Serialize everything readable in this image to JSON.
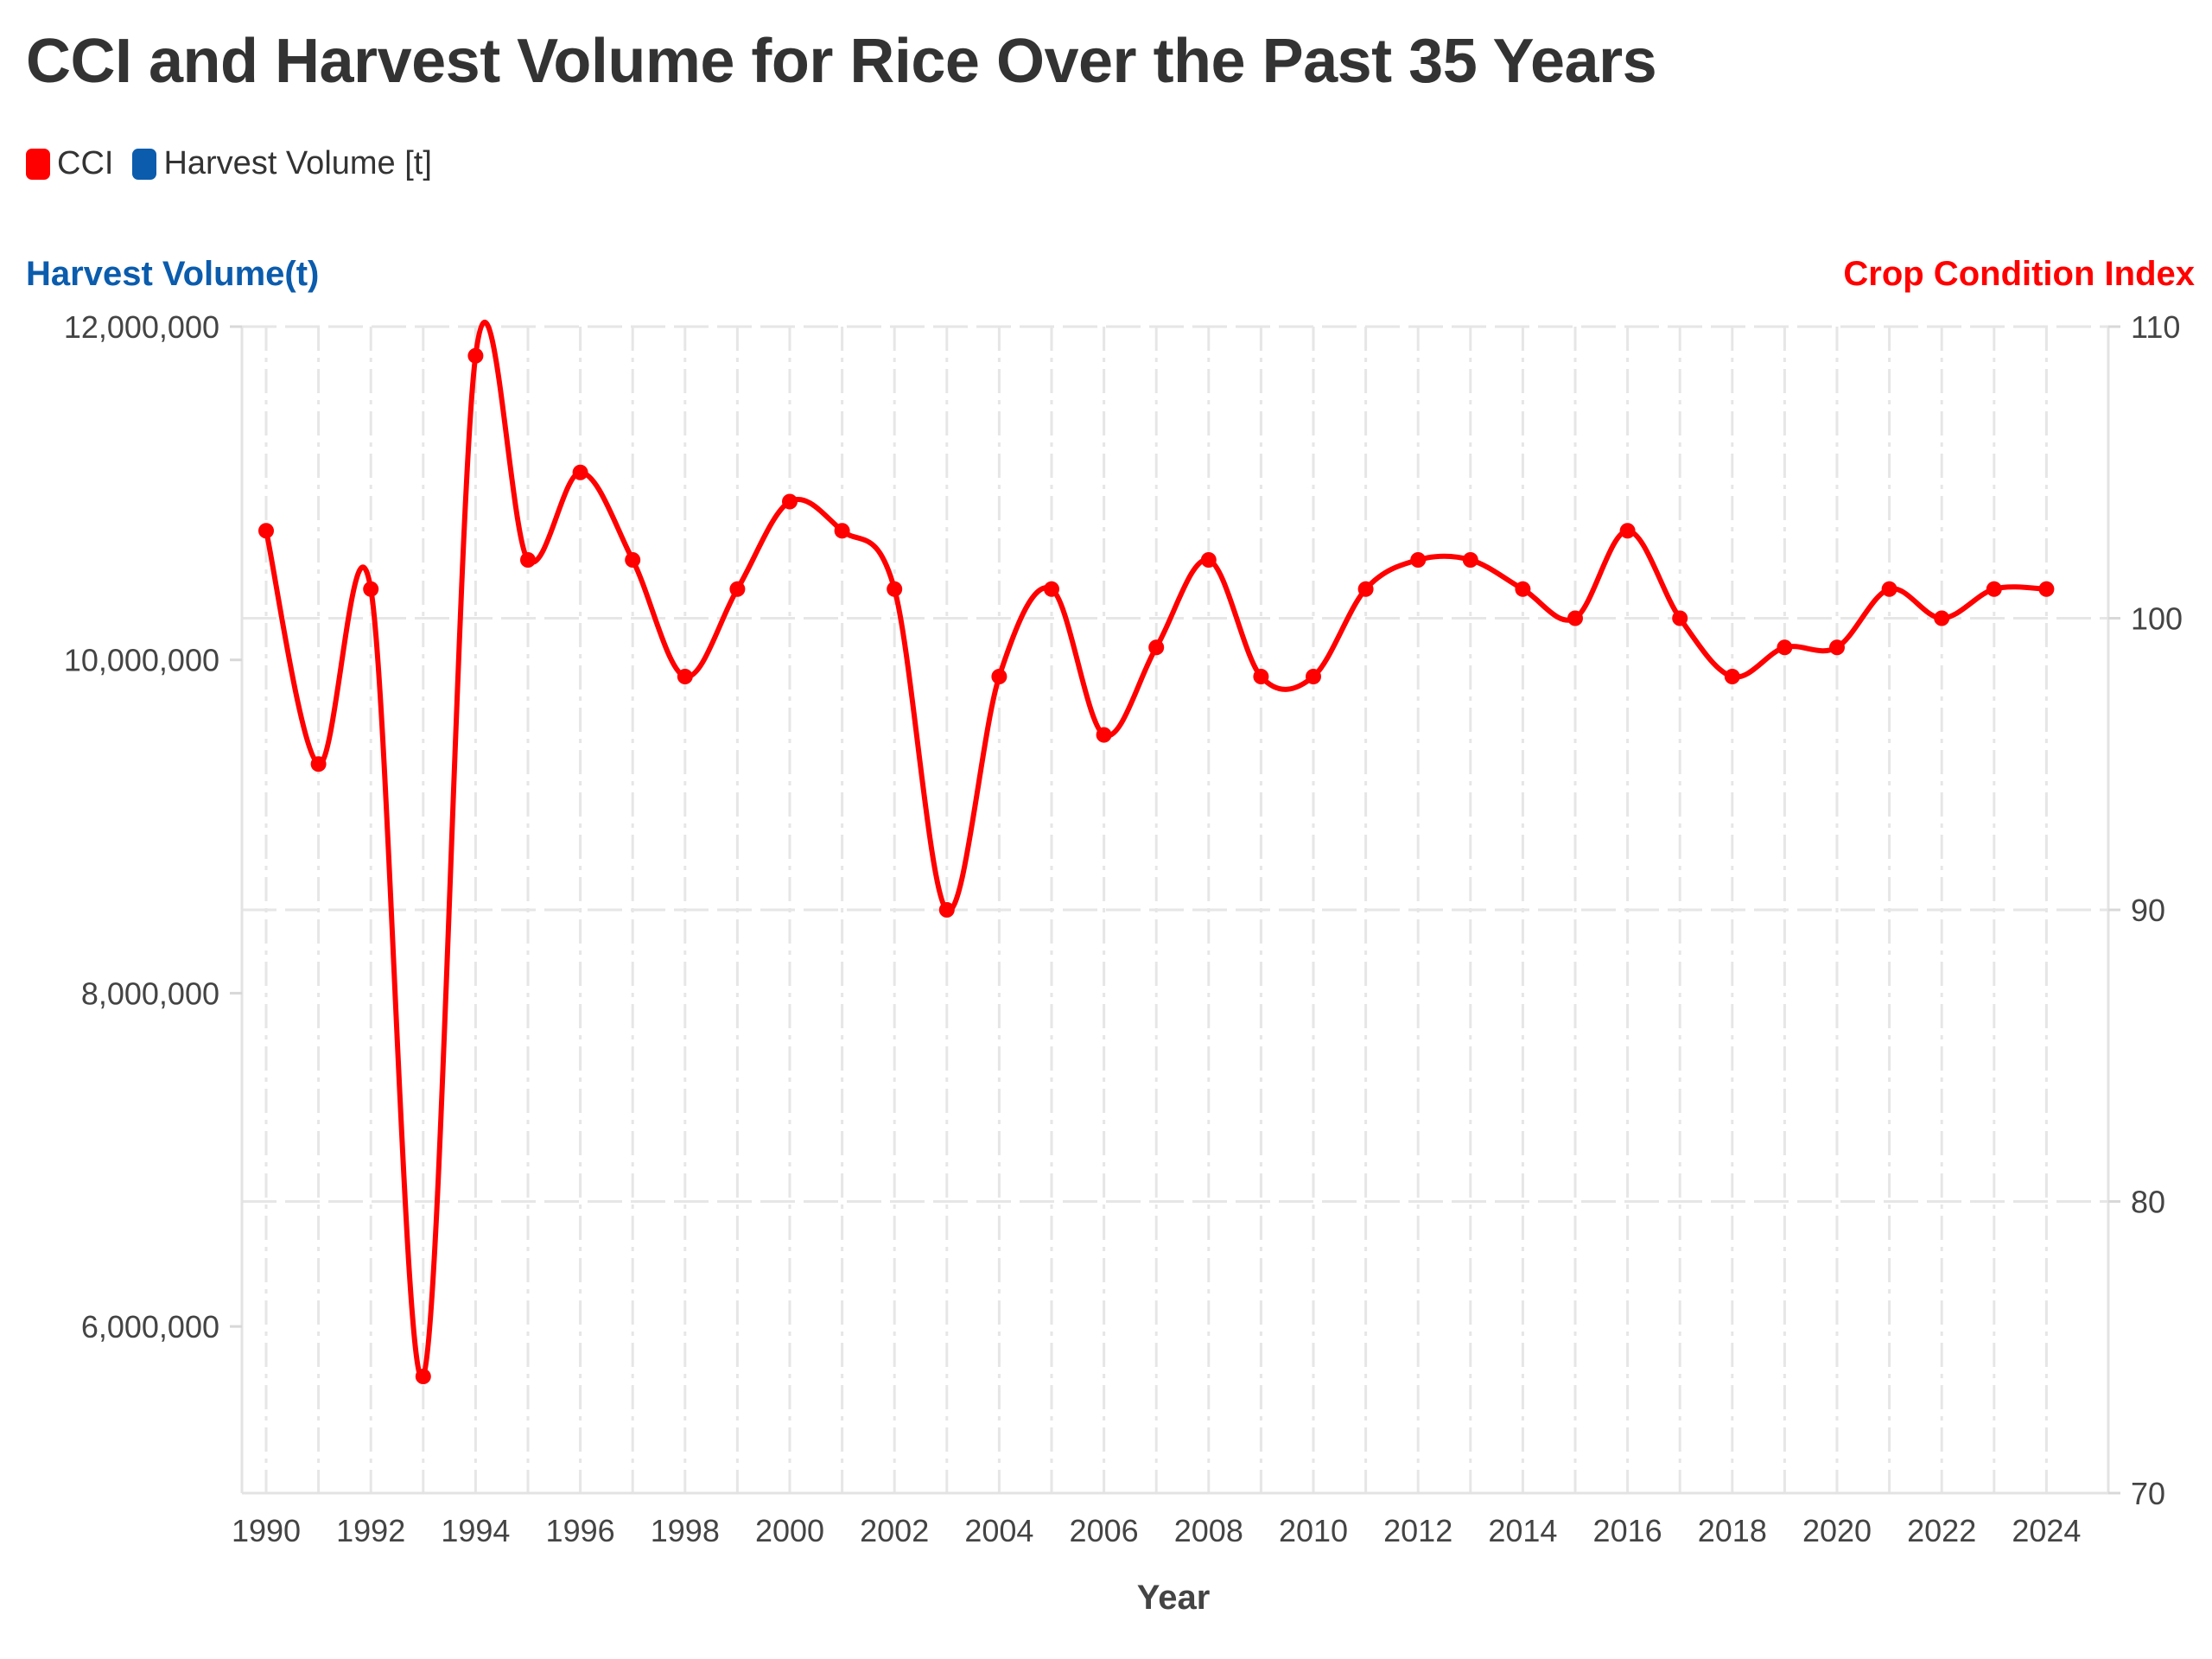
{
  "chart_data": {
    "type": "line",
    "title": "CCI and Harvest Volume for Rice Over the Past 35 Years",
    "legend": {
      "placement": "top-left",
      "entries": [
        {
          "label": "CCI",
          "color": "#ff0000"
        },
        {
          "label": "Harvest Volume [t]",
          "color": "#0b5cad"
        }
      ]
    },
    "xlabel": "Year",
    "y_left_label": "Harvest Volume(t)",
    "y_right_label": "Crop Condition Index",
    "y_left_ticks": [
      "6,000,000",
      "8,000,000",
      "10,000,000",
      "12,000,000"
    ],
    "y_left_tick_values": [
      6000000,
      8000000,
      10000000,
      12000000
    ],
    "y_left_range": [
      5000000,
      12000000
    ],
    "y_right_ticks": [
      "70",
      "80",
      "90",
      "100",
      "110"
    ],
    "y_right_tick_values": [
      70,
      80,
      90,
      100,
      110
    ],
    "y_right_range": [
      70,
      110
    ],
    "x_tick_labels": [
      "1990",
      "1992",
      "1994",
      "1996",
      "1998",
      "2000",
      "2002",
      "2004",
      "2006",
      "2008",
      "2010",
      "2012",
      "2014",
      "2016",
      "2018",
      "2020",
      "2022",
      "2024"
    ],
    "grid": true,
    "colors": {
      "cci": "#ff0000",
      "harvest": "#0b5cad",
      "left_axis_title": "#0b5cad",
      "right_axis_title": "#ff0000",
      "grid": "#e6e6e6"
    },
    "x": [
      1990,
      1991,
      1992,
      1993,
      1994,
      1995,
      1996,
      1997,
      1998,
      1999,
      2000,
      2001,
      2002,
      2003,
      2004,
      2005,
      2006,
      2007,
      2008,
      2009,
      2010,
      2011,
      2012,
      2013,
      2014,
      2015,
      2016,
      2017,
      2018,
      2019,
      2020,
      2021,
      2022,
      2023,
      2024
    ],
    "series": [
      {
        "name": "CCI",
        "axis": "right",
        "values": [
          103,
          95,
          101,
          74,
          109,
          102,
          105,
          102,
          98,
          101,
          104,
          103,
          101,
          90,
          98,
          101,
          96,
          99,
          102,
          98,
          98,
          101,
          102,
          102,
          101,
          100,
          103,
          100,
          98,
          99,
          99,
          101,
          100,
          101,
          101
        ]
      }
    ]
  }
}
